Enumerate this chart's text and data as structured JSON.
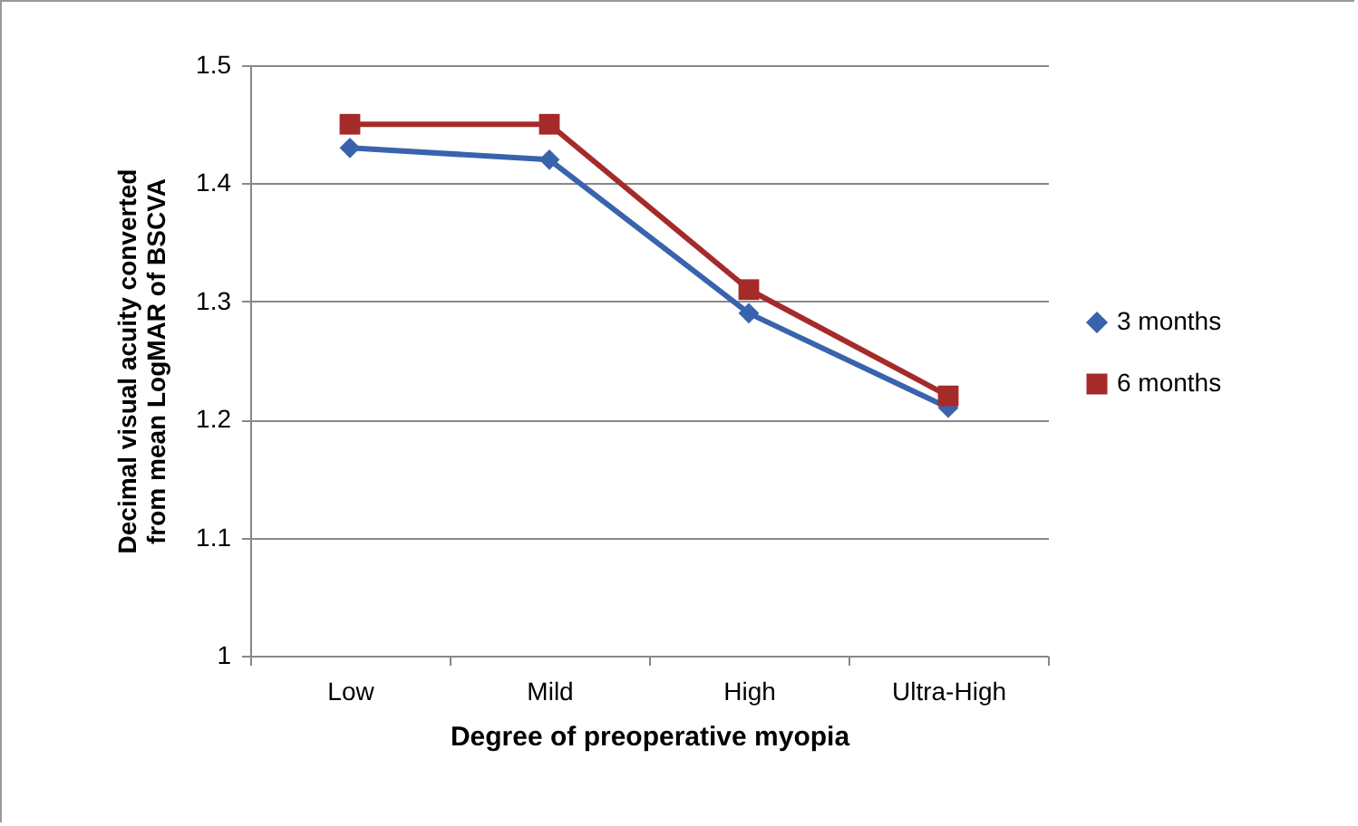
{
  "chart_data": {
    "type": "line",
    "xlabel": "Degree of preoperative myopia",
    "ylabel": "Decimal visual acuity converted from mean LogMAR of BSCVA",
    "categories": [
      "Low",
      "Mild",
      "High",
      "Ultra-High"
    ],
    "series": [
      {
        "name": "3 months",
        "color": "#3a63ad",
        "marker": "diamond",
        "values": [
          1.43,
          1.42,
          1.29,
          1.21
        ]
      },
      {
        "name": "6 months",
        "color": "#a52a2a",
        "marker": "square",
        "values": [
          1.45,
          1.45,
          1.31,
          1.22
        ]
      }
    ],
    "ylim": [
      1,
      1.5
    ],
    "yticks": [
      1,
      1.1,
      1.2,
      1.3,
      1.4,
      1.5
    ],
    "grid": "y",
    "legend": "right"
  }
}
